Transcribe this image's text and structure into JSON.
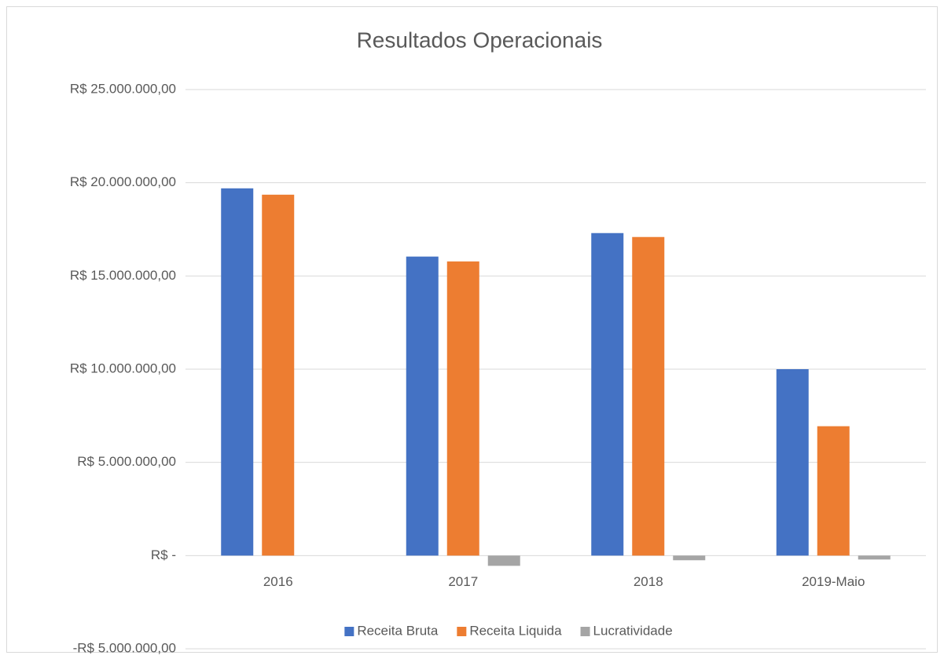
{
  "chart_data": {
    "type": "bar",
    "title": "Resultados Operacionais",
    "categories": [
      "2016",
      "2017",
      "2018",
      "2019-Maio"
    ],
    "series": [
      {
        "name": "Receita Bruta",
        "color": "#4472c4",
        "values": [
          19700000,
          16040000,
          17300000,
          10000000
        ]
      },
      {
        "name": "Receita Liquida",
        "color": "#ed7d31",
        "values": [
          19360000,
          15780000,
          17090000,
          6940000
        ]
      },
      {
        "name": "Lucratividade",
        "color": "#a5a5a5",
        "values": [
          0,
          -550000,
          -250000,
          -210000
        ]
      }
    ],
    "ylim": [
      -5000000,
      25000000
    ],
    "yticks": [
      {
        "value": -5000000,
        "label": "-R$ 5.000.000,00"
      },
      {
        "value": 0,
        "label": "R$ -"
      },
      {
        "value": 5000000,
        "label": "R$ 5.000.000,00"
      },
      {
        "value": 10000000,
        "label": "R$ 10.000.000,00"
      },
      {
        "value": 15000000,
        "label": "R$ 15.000.000,00"
      },
      {
        "value": 20000000,
        "label": "R$ 20.000.000,00"
      },
      {
        "value": 25000000,
        "label": "R$ 25.000.000,00"
      }
    ],
    "grid": true,
    "legend": "bottom"
  }
}
